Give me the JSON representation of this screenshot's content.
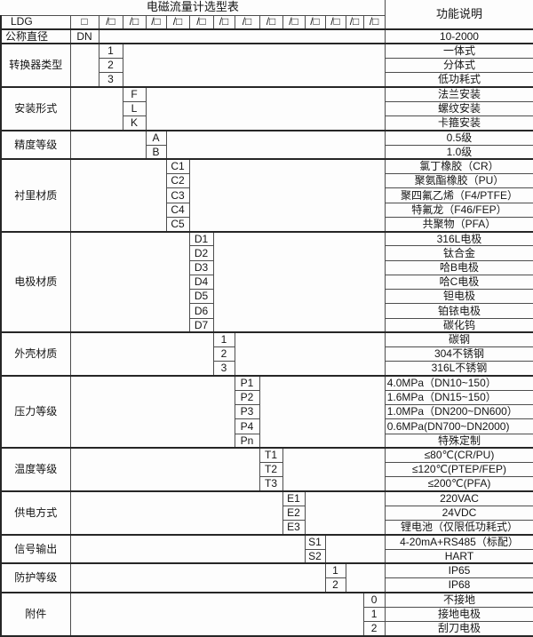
{
  "title": "电磁流量计选型表",
  "function_header": "功能说明",
  "model_row": {
    "prefix": "LDG",
    "base_box": "□",
    "slots": [
      "/□",
      "/□",
      "/□",
      "/□",
      "/□",
      "/□",
      "/□",
      "/□",
      "/□",
      "/□",
      "/□",
      "/□",
      "/□"
    ]
  },
  "groups": [
    {
      "category": "公称直径",
      "code_col": 0,
      "items": [
        {
          "code": "DN",
          "desc": "10-2000"
        }
      ]
    },
    {
      "category": "转换器类型",
      "code_col": 1,
      "items": [
        {
          "code": "1",
          "desc": "一体式"
        },
        {
          "code": "2",
          "desc": "分体式"
        },
        {
          "code": "3",
          "desc": "低功耗式"
        }
      ]
    },
    {
      "category": "安装形式",
      "code_col": 2,
      "items": [
        {
          "code": "F",
          "desc": "法兰安装"
        },
        {
          "code": "L",
          "desc": "螺纹安装"
        },
        {
          "code": "K",
          "desc": "卡箍安装"
        }
      ]
    },
    {
      "category": "精度等级",
      "code_col": 3,
      "items": [
        {
          "code": "A",
          "desc": "0.5级"
        },
        {
          "code": "B",
          "desc": "1.0级"
        }
      ]
    },
    {
      "category": "衬里材质",
      "code_col": 4,
      "items": [
        {
          "code": "C1",
          "desc": "氯丁橡胶（CR）"
        },
        {
          "code": "C2",
          "desc": "聚氨酯橡胶（PU）"
        },
        {
          "code": "C3",
          "desc": "聚四氟乙烯（F4/PTFE）"
        },
        {
          "code": "C4",
          "desc": "特氟龙（F46/FEP）"
        },
        {
          "code": "C5",
          "desc": "共聚物（PFA）"
        }
      ]
    },
    {
      "category": "电极材质",
      "code_col": 5,
      "items": [
        {
          "code": "D1",
          "desc": "316L电极"
        },
        {
          "code": "D2",
          "desc": "钛合金"
        },
        {
          "code": "D3",
          "desc": "哈B电极"
        },
        {
          "code": "D4",
          "desc": "哈C电极"
        },
        {
          "code": "D5",
          "desc": "钽电极"
        },
        {
          "code": "D6",
          "desc": "铂铱电极"
        },
        {
          "code": "D7",
          "desc": "碳化钨"
        }
      ]
    },
    {
      "category": "外壳材质",
      "code_col": 6,
      "items": [
        {
          "code": "1",
          "desc": "碳钢"
        },
        {
          "code": "2",
          "desc": "304不锈钢"
        },
        {
          "code": "3",
          "desc": "316L不锈钢"
        }
      ]
    },
    {
      "category": "压力等级",
      "code_col": 7,
      "items": [
        {
          "code": "P1",
          "desc": "4.0MPa（DN10~150）"
        },
        {
          "code": "P2",
          "desc": "1.6MPa（DN15~150）"
        },
        {
          "code": "P3",
          "desc": "1.0MPa（DN200~DN600）"
        },
        {
          "code": "P4",
          "desc": "0.6MPa(DN700~DN2000)"
        },
        {
          "code": "Pn",
          "desc": "特殊定制"
        }
      ]
    },
    {
      "category": "温度等级",
      "code_col": 8,
      "items": [
        {
          "code": "T1",
          "desc": "≤80℃(CR/PU)"
        },
        {
          "code": "T2",
          "desc": "≤120℃(PTEP/FEP)"
        },
        {
          "code": "T3",
          "desc": "≤200℃(PFA)"
        }
      ]
    },
    {
      "category": "供电方式",
      "code_col": 9,
      "items": [
        {
          "code": "E1",
          "desc": "220VAC"
        },
        {
          "code": "E2",
          "desc": "24VDC"
        },
        {
          "code": "E3",
          "desc": "锂电池（仅限低功耗式）"
        }
      ]
    },
    {
      "category": "信号输出",
      "code_col": 10,
      "items": [
        {
          "code": "S1",
          "desc": "4-20mA+RS485（标配）"
        },
        {
          "code": "S2",
          "desc": "HART"
        }
      ]
    },
    {
      "category": "防护等级",
      "code_col": 11,
      "items": [
        {
          "code": "1",
          "desc": "IP65"
        },
        {
          "code": "2",
          "desc": "IP68"
        }
      ]
    },
    {
      "category": "附件",
      "code_col": 13,
      "items": [
        {
          "code": "0",
          "desc": "不接地"
        },
        {
          "code": "1",
          "desc": "接地电极"
        },
        {
          "code": "2",
          "desc": "刮刀电极"
        }
      ]
    }
  ],
  "colors": {
    "border": "#4d4d4d",
    "border_heavy": "#262626",
    "text": "#151515",
    "background": "#fdfdfd"
  }
}
